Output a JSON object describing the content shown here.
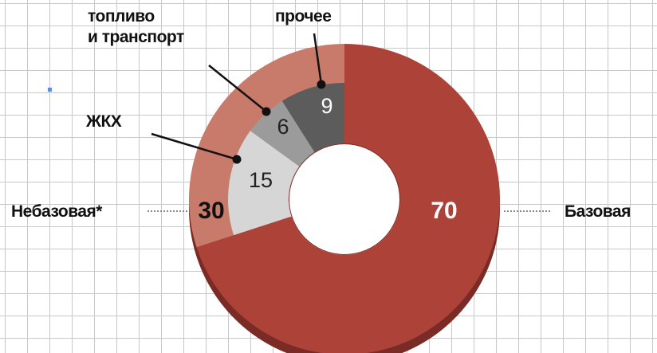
{
  "chart_data": {
    "type": "donut",
    "outer": {
      "categories": [
        "Базовая",
        "Небазовая*"
      ],
      "values": [
        70,
        30
      ],
      "colors": [
        "#ad4239",
        "#c97b6b"
      ]
    },
    "inner": {
      "categories": [
        "ЖКХ",
        "топливо\nи транспорт",
        "прочее"
      ],
      "values": [
        15,
        6,
        9
      ],
      "colors": [
        "#d6d6d6",
        "#9b9b9b",
        "#5c5c5c"
      ]
    }
  }
}
